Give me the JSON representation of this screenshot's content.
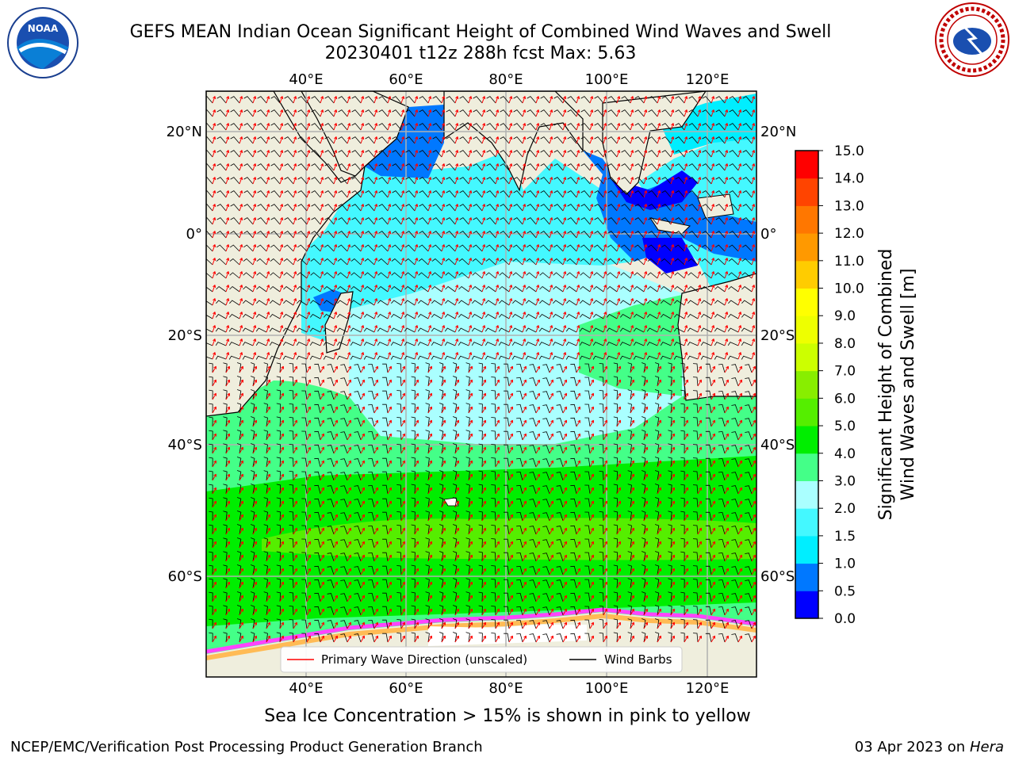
{
  "header": {
    "title_line1": "GEFS MEAN Indian Ocean Significant Height of Combined Wind Waves and Swell",
    "title_line2": "20230401 t12z 288h fcst   Max: 5.63"
  },
  "logos": {
    "left_name": "NOAA",
    "left_ring_text": "NATIONAL OCEANIC AND ATMOSPHERIC ADMINISTRATION · U.S. DEPARTMENT OF COMMERCE",
    "right_ring_text": "NATIONAL WEATHER SERVICE"
  },
  "map": {
    "lon_labels": [
      "40°E",
      "60°E",
      "80°E",
      "100°E",
      "120°E"
    ],
    "lat_labels": [
      "20°N",
      "0°",
      "20°S",
      "40°S",
      "60°S"
    ],
    "legend": {
      "wave_label": "Primary Wave Direction (unscaled)",
      "barb_label": "Wind Barbs"
    }
  },
  "colorbar": {
    "title": "Significant Height of Combined Wind Waves and Swell [m]",
    "title_line1": "Significant Height of Combined",
    "title_line2": "Wind Waves and Swell [m]",
    "ticks": [
      "0.0",
      "0.5",
      "1.0",
      "1.5",
      "2.0",
      "3.0",
      "4.0",
      "5.0",
      "6.0",
      "7.0",
      "8.0",
      "9.0",
      "10.0",
      "11.0",
      "12.0",
      "13.0",
      "14.0",
      "15.0"
    ],
    "colors": [
      "#0000ff",
      "#0078ff",
      "#00eeff",
      "#44f8ff",
      "#aaffff",
      "#44ff88",
      "#00ee00",
      "#55ee00",
      "#88ee00",
      "#ccff00",
      "#eeff00",
      "#ffff00",
      "#ffcc00",
      "#ff9900",
      "#ff7700",
      "#ff4400",
      "#ff0000"
    ]
  },
  "notes": {
    "sea_ice": "Sea Ice Concentration > 15% is shown in pink to yellow"
  },
  "footer": {
    "left": "NCEP/EMC/Verification Post Processing Product Generation Branch",
    "right_date": "03 Apr 2023 on ",
    "right_machine": "Hera"
  }
}
